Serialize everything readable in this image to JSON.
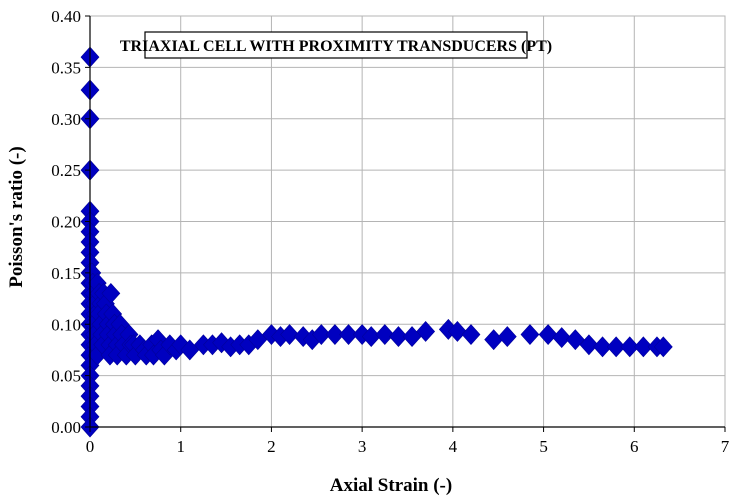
{
  "chart_data": {
    "type": "scatter",
    "title": "TRIAXIAL CELL WITH PROXIMITY TRANSDUCERS (PT)",
    "xlabel": "Axial Strain  (-)",
    "ylabel": "Poisson's ratio  (-)",
    "xlim": [
      0,
      7
    ],
    "ylim": [
      0,
      0.4
    ],
    "xticks": [
      "0",
      "1",
      "2",
      "3",
      "4",
      "5",
      "6",
      "7"
    ],
    "yticks": [
      "0.00",
      "0.05",
      "0.10",
      "0.15",
      "0.20",
      "0.25",
      "0.30",
      "0.35",
      "0.40"
    ],
    "grid": true,
    "marker": "diamond",
    "color": "#0000c0",
    "points": [
      [
        0.0,
        0.36
      ],
      [
        0.0,
        0.328
      ],
      [
        0.0,
        0.3
      ],
      [
        0.0,
        0.25
      ],
      [
        0.0,
        0.21
      ],
      [
        0.0,
        0.2
      ],
      [
        0.0,
        0.19
      ],
      [
        0.0,
        0.18
      ],
      [
        0.0,
        0.17
      ],
      [
        0.0,
        0.16
      ],
      [
        0.0,
        0.15
      ],
      [
        0.0,
        0.14
      ],
      [
        0.0,
        0.13
      ],
      [
        0.0,
        0.12
      ],
      [
        0.0,
        0.11
      ],
      [
        0.0,
        0.1
      ],
      [
        0.0,
        0.09
      ],
      [
        0.0,
        0.08
      ],
      [
        0.0,
        0.07
      ],
      [
        0.0,
        0.06
      ],
      [
        0.0,
        0.05
      ],
      [
        0.0,
        0.04
      ],
      [
        0.0,
        0.03
      ],
      [
        0.0,
        0.02
      ],
      [
        0.0,
        0.01
      ],
      [
        0.0,
        0.0
      ],
      [
        0.02,
        0.15
      ],
      [
        0.03,
        0.14
      ],
      [
        0.04,
        0.13
      ],
      [
        0.05,
        0.12
      ],
      [
        0.06,
        0.11
      ],
      [
        0.04,
        0.1
      ],
      [
        0.05,
        0.09
      ],
      [
        0.06,
        0.08
      ],
      [
        0.08,
        0.07
      ],
      [
        0.08,
        0.14
      ],
      [
        0.1,
        0.13
      ],
      [
        0.12,
        0.12
      ],
      [
        0.1,
        0.11
      ],
      [
        0.12,
        0.1
      ],
      [
        0.13,
        0.09
      ],
      [
        0.14,
        0.08
      ],
      [
        0.15,
        0.13
      ],
      [
        0.17,
        0.12
      ],
      [
        0.18,
        0.11
      ],
      [
        0.2,
        0.1
      ],
      [
        0.2,
        0.09
      ],
      [
        0.22,
        0.08
      ],
      [
        0.22,
        0.07
      ],
      [
        0.23,
        0.13
      ],
      [
        0.25,
        0.11
      ],
      [
        0.27,
        0.1
      ],
      [
        0.28,
        0.09
      ],
      [
        0.3,
        0.08
      ],
      [
        0.3,
        0.07
      ],
      [
        0.33,
        0.1
      ],
      [
        0.35,
        0.09
      ],
      [
        0.37,
        0.08
      ],
      [
        0.4,
        0.07
      ],
      [
        0.43,
        0.09
      ],
      [
        0.45,
        0.08
      ],
      [
        0.48,
        0.08
      ],
      [
        0.5,
        0.07
      ],
      [
        0.55,
        0.08
      ],
      [
        0.6,
        0.075
      ],
      [
        0.62,
        0.07
      ],
      [
        0.68,
        0.08
      ],
      [
        0.7,
        0.07
      ],
      [
        0.75,
        0.085
      ],
      [
        0.78,
        0.075
      ],
      [
        0.82,
        0.07
      ],
      [
        0.88,
        0.08
      ],
      [
        0.95,
        0.075
      ],
      [
        1.0,
        0.08
      ],
      [
        1.1,
        0.075
      ],
      [
        1.25,
        0.08
      ],
      [
        1.35,
        0.08
      ],
      [
        1.45,
        0.082
      ],
      [
        1.55,
        0.078
      ],
      [
        1.65,
        0.08
      ],
      [
        1.75,
        0.08
      ],
      [
        1.85,
        0.085
      ],
      [
        2.0,
        0.09
      ],
      [
        2.1,
        0.088
      ],
      [
        2.2,
        0.09
      ],
      [
        2.35,
        0.088
      ],
      [
        2.45,
        0.085
      ],
      [
        2.55,
        0.09
      ],
      [
        2.7,
        0.09
      ],
      [
        2.85,
        0.09
      ],
      [
        3.0,
        0.09
      ],
      [
        3.1,
        0.088
      ],
      [
        3.25,
        0.09
      ],
      [
        3.4,
        0.088
      ],
      [
        3.55,
        0.088
      ],
      [
        3.7,
        0.093
      ],
      [
        3.95,
        0.095
      ],
      [
        4.05,
        0.093
      ],
      [
        4.2,
        0.09
      ],
      [
        4.45,
        0.085
      ],
      [
        4.6,
        0.088
      ],
      [
        4.85,
        0.09
      ],
      [
        5.05,
        0.09
      ],
      [
        5.2,
        0.087
      ],
      [
        5.35,
        0.085
      ],
      [
        5.5,
        0.08
      ],
      [
        5.65,
        0.078
      ],
      [
        5.8,
        0.078
      ],
      [
        5.95,
        0.078
      ],
      [
        6.1,
        0.078
      ],
      [
        6.25,
        0.078
      ],
      [
        6.32,
        0.078
      ]
    ]
  }
}
